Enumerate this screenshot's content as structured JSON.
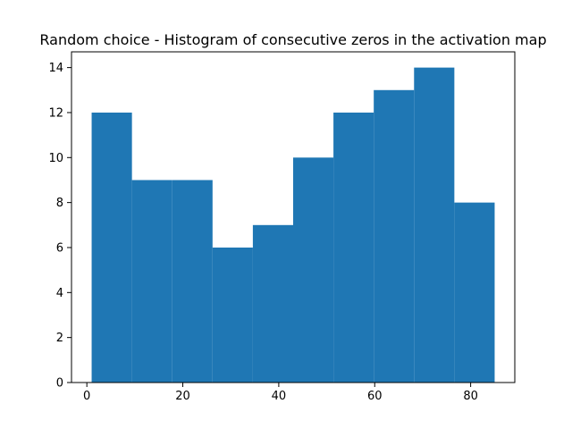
{
  "chart_data": {
    "type": "bar",
    "subtype": "histogram",
    "title": "Random choice - Histogram of consecutive zeros in the activation map",
    "xlabel": "",
    "ylabel": "",
    "bins": [
      {
        "x0": 1.0,
        "x1": 9.4,
        "count": 12
      },
      {
        "x0": 9.4,
        "x1": 17.8,
        "count": 9
      },
      {
        "x0": 17.8,
        "x1": 26.2,
        "count": 9
      },
      {
        "x0": 26.2,
        "x1": 34.6,
        "count": 6
      },
      {
        "x0": 34.6,
        "x1": 43.0,
        "count": 7
      },
      {
        "x0": 43.0,
        "x1": 51.4,
        "count": 10
      },
      {
        "x0": 51.4,
        "x1": 59.8,
        "count": 12
      },
      {
        "x0": 59.8,
        "x1": 68.2,
        "count": 13
      },
      {
        "x0": 68.2,
        "x1": 76.6,
        "count": 14
      },
      {
        "x0": 76.6,
        "x1": 85.0,
        "count": 8
      }
    ],
    "xlim": [
      -3.2,
      89.2
    ],
    "ylim": [
      0,
      14.7
    ],
    "xticks": [
      0,
      20,
      40,
      60,
      80
    ],
    "xtick_labels": [
      "0",
      "20",
      "40",
      "60",
      "80"
    ],
    "yticks": [
      0,
      2,
      4,
      6,
      8,
      10,
      12,
      14
    ],
    "ytick_labels": [
      "0",
      "2",
      "4",
      "6",
      "8",
      "10",
      "12",
      "14"
    ],
    "grid": false,
    "legend": "none",
    "bar_color": "#1f77b4"
  }
}
